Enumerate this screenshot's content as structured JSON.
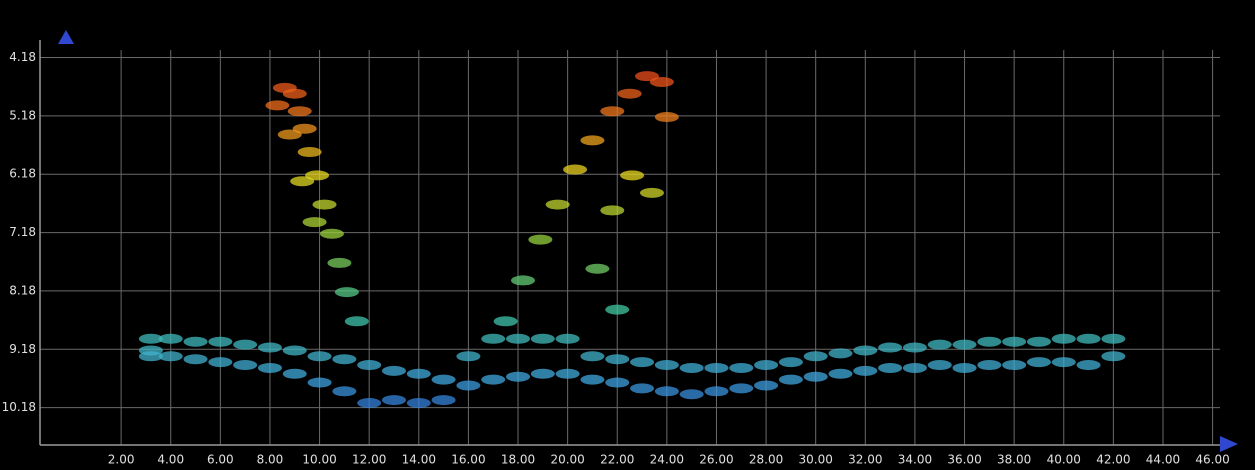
{
  "chart_data": {
    "type": "scatter",
    "xlim": [
      -1.27,
      46.5
    ],
    "ylim": [
      10.82,
      3.88
    ],
    "xticks": [
      {
        "value": 2,
        "label": "2.00"
      },
      {
        "value": 4,
        "label": "4.00"
      },
      {
        "value": 6,
        "label": "6.00"
      },
      {
        "value": 8,
        "label": "8.00"
      },
      {
        "value": 10,
        "label": "10.00"
      },
      {
        "value": 12,
        "label": "12.00"
      },
      {
        "value": 14,
        "label": "14.00"
      },
      {
        "value": 16,
        "label": "16.00"
      },
      {
        "value": 18,
        "label": "18.00"
      },
      {
        "value": 20,
        "label": "20.00"
      },
      {
        "value": 22,
        "label": "22.00"
      },
      {
        "value": 24,
        "label": "24.00"
      },
      {
        "value": 26,
        "label": "26.00"
      },
      {
        "value": 28,
        "label": "28.00"
      },
      {
        "value": 30,
        "label": "30.00"
      },
      {
        "value": 32,
        "label": "32.00"
      },
      {
        "value": 34,
        "label": "34.00"
      },
      {
        "value": 36,
        "label": "36.00"
      },
      {
        "value": 38,
        "label": "38.00"
      },
      {
        "value": 40,
        "label": "40.00"
      },
      {
        "value": 42,
        "label": "42.00"
      },
      {
        "value": 44,
        "label": "44.00"
      },
      {
        "value": 46,
        "label": "46.00"
      }
    ],
    "yticks": [
      {
        "value": 4.18,
        "label": "4.18"
      },
      {
        "value": 5.18,
        "label": "5.18"
      },
      {
        "value": 6.18,
        "label": "6.18"
      },
      {
        "value": 7.18,
        "label": "7.18"
      },
      {
        "value": 8.18,
        "label": "8.18"
      },
      {
        "value": 9.18,
        "label": "9.18"
      },
      {
        "value": 10.18,
        "label": "10.18"
      }
    ],
    "grid": true,
    "colormap": [
      "#e8251a",
      "#f0701c",
      "#e8d820",
      "#90d040",
      "#40c8a0",
      "#40a8e0",
      "#2040d0"
    ],
    "x": [
      3.2,
      3.2,
      3.2,
      4,
      4,
      5,
      5,
      6,
      6,
      7,
      7,
      8,
      8,
      9,
      9,
      10,
      10,
      11,
      11,
      12,
      12,
      13,
      13,
      14,
      14,
      15,
      15,
      16,
      16,
      17,
      17,
      18,
      18,
      19,
      19,
      20,
      20,
      21,
      21,
      22,
      22,
      23,
      23,
      24,
      24,
      25,
      25,
      26,
      26,
      27,
      27,
      28,
      28,
      29,
      29,
      30,
      30,
      31,
      31,
      32,
      32,
      33,
      33,
      34,
      34,
      35,
      35,
      36,
      36,
      37,
      37,
      38,
      38,
      39,
      39,
      40,
      40,
      41,
      41,
      42,
      42,
      8.6,
      9.0,
      9.2,
      9.4,
      9.6,
      9.9,
      10.2,
      10.5,
      10.8,
      11.1,
      11.5,
      8.3,
      8.8,
      9.3,
      9.8,
      17.5,
      18.2,
      18.9,
      19.6,
      20.3,
      21.0,
      21.8,
      22.5,
      23.2,
      23.8,
      22.6,
      21.8,
      21.2,
      22.0,
      23.4,
      24.0
    ],
    "y": [
      9.0,
      9.2,
      9.3,
      9.0,
      9.3,
      9.05,
      9.35,
      9.05,
      9.4,
      9.1,
      9.45,
      9.15,
      9.5,
      9.2,
      9.6,
      9.3,
      9.75,
      9.35,
      9.9,
      9.45,
      10.1,
      9.55,
      10.05,
      9.6,
      10.1,
      9.7,
      10.05,
      9.3,
      9.8,
      9.0,
      9.7,
      9.0,
      9.65,
      9.0,
      9.6,
      9.0,
      9.6,
      9.3,
      9.7,
      9.35,
      9.75,
      9.4,
      9.85,
      9.45,
      9.9,
      9.5,
      9.95,
      9.5,
      9.9,
      9.5,
      9.85,
      9.45,
      9.8,
      9.4,
      9.7,
      9.3,
      9.65,
      9.25,
      9.6,
      9.2,
      9.55,
      9.15,
      9.5,
      9.15,
      9.5,
      9.1,
      9.45,
      9.1,
      9.5,
      9.05,
      9.45,
      9.05,
      9.45,
      9.05,
      9.4,
      9.0,
      9.4,
      9.0,
      9.45,
      9.0,
      9.3,
      4.7,
      4.8,
      5.1,
      5.4,
      5.8,
      6.2,
      6.7,
      7.2,
      7.7,
      8.2,
      8.7,
      5.0,
      5.5,
      6.3,
      7.0,
      8.7,
      8.0,
      7.3,
      6.7,
      6.1,
      5.6,
      5.1,
      4.8,
      4.5,
      4.6,
      6.2,
      6.8,
      7.8,
      8.5,
      6.5,
      5.2
    ]
  }
}
